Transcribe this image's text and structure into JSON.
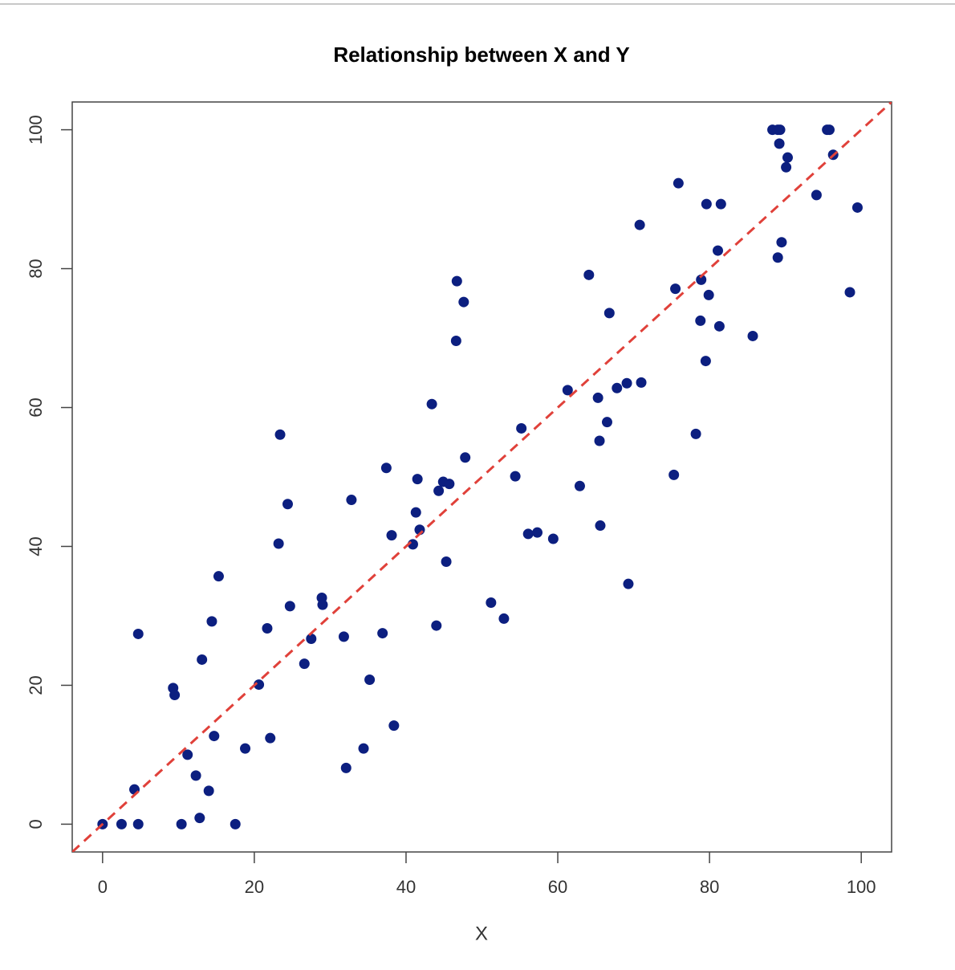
{
  "chart_data": {
    "type": "scatter",
    "title": "Relationship between X and Y",
    "x_label": "X",
    "color": "#0c1f80",
    "xlim": [
      -4,
      104
    ],
    "ylim": [
      -4,
      104
    ],
    "xticks": [
      0,
      20,
      40,
      60,
      80,
      100
    ],
    "yticks": [
      0,
      20,
      40,
      60,
      80,
      100
    ],
    "grid": false,
    "reference_line": {
      "slope": 1,
      "intercept": 0,
      "color": "#e0413a",
      "style": "dashed"
    },
    "x": [
      0,
      2.5,
      4.7,
      4.2,
      4.7,
      9.3,
      9.5,
      10.4,
      11.2,
      12.3,
      12.8,
      13.1,
      14.0,
      14.4,
      14.7,
      15.3,
      17.5,
      18.8,
      20.6,
      21.7,
      22.1,
      23.2,
      23.4,
      24.4,
      24.7,
      26.6,
      27.5,
      28.9,
      29.0,
      31.8,
      32.1,
      32.8,
      34.4,
      35.2,
      36.9,
      37.4,
      38.1,
      38.4,
      40.9,
      41.3,
      41.5,
      41.8,
      43.4,
      44.0,
      44.3,
      44.9,
      45.3,
      45.7,
      46.6,
      46.7,
      47.6,
      47.8,
      51.2,
      52.9,
      54.4,
      55.2,
      56.1,
      57.3,
      59.4,
      61.3,
      62.9,
      64.1,
      65.3,
      65.5,
      65.6,
      66.5,
      66.8,
      67.8,
      69.1,
      69.3,
      70.8,
      71.0,
      75.3,
      75.5,
      75.9,
      78.2,
      78.8,
      78.9,
      79.5,
      79.6,
      79.9,
      81.1,
      81.3,
      81.5,
      85.7,
      88.3,
      89.0,
      89.3,
      89.0,
      89.2,
      89.5,
      90.1,
      90.3,
      94.1,
      95.5,
      95.8,
      96.3,
      98.5,
      99.5
    ],
    "values": [
      0,
      0,
      0,
      5.0,
      27.4,
      19.6,
      18.6,
      0,
      10.0,
      7.0,
      0.9,
      23.7,
      4.8,
      29.2,
      12.7,
      35.7,
      0,
      10.9,
      20.1,
      28.2,
      12.4,
      40.4,
      56.1,
      46.1,
      31.4,
      23.1,
      26.7,
      32.6,
      31.6,
      27.0,
      8.1,
      46.7,
      10.9,
      20.8,
      27.5,
      51.3,
      41.6,
      14.2,
      40.3,
      44.9,
      49.7,
      42.4,
      60.5,
      28.6,
      48.0,
      49.3,
      37.8,
      49.0,
      69.6,
      78.2,
      75.2,
      52.8,
      31.9,
      29.6,
      50.1,
      57.0,
      41.8,
      42.0,
      41.1,
      62.5,
      48.7,
      79.1,
      61.4,
      55.2,
      43.0,
      57.9,
      73.6,
      62.8,
      63.5,
      34.6,
      86.3,
      63.6,
      50.3,
      77.1,
      92.3,
      56.2,
      72.5,
      78.4,
      66.7,
      89.3,
      76.2,
      82.6,
      71.7,
      89.3,
      70.3,
      100,
      100,
      100,
      81.6,
      98.0,
      83.8,
      94.6,
      96.0,
      90.6,
      100,
      100,
      96.4,
      76.6,
      88.8
    ]
  }
}
